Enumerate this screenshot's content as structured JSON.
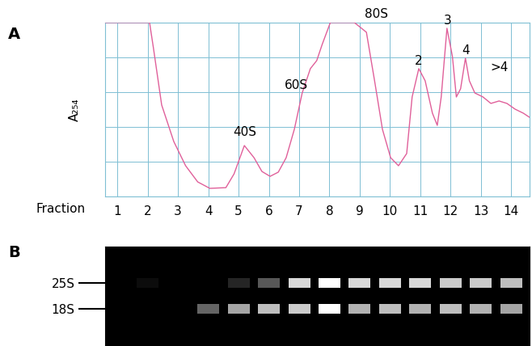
{
  "chart_data": [
    {
      "type": "line",
      "panel": "A",
      "x_label": "Fraction",
      "y_label": "A₂₅₄",
      "x": [
        0.6,
        2.06,
        2.19,
        2.46,
        2.86,
        3.25,
        3.65,
        4.05,
        4.58,
        4.85,
        5.19,
        5.51,
        5.77,
        6.04,
        6.31,
        6.57,
        6.84,
        7.1,
        7.37,
        7.58,
        7.76,
        8.03,
        8.82,
        9.22,
        9.49,
        9.75,
        10.02,
        10.28,
        10.55,
        10.73,
        10.95,
        11.16,
        11.4,
        11.56,
        11.69,
        11.88,
        12.06,
        12.19,
        12.33,
        12.49,
        12.62,
        12.8,
        13.07,
        13.33,
        13.6,
        13.86,
        14.13,
        14.4,
        14.6
      ],
      "values": [
        100,
        100,
        85.1,
        52.6,
        31.6,
        17.7,
        8.4,
        4.7,
        5.1,
        13.0,
        29.3,
        22.3,
        14.4,
        11.6,
        14.0,
        22.3,
        38.6,
        59.5,
        73.5,
        78.1,
        87.4,
        100,
        100,
        94.4,
        66.5,
        38.6,
        22.3,
        17.7,
        24.7,
        57.2,
        73.5,
        66.5,
        47.9,
        40.9,
        57.2,
        96.7,
        80.5,
        57.2,
        61.9,
        79.5,
        66.5,
        59.5,
        57.2,
        53.5,
        54.9,
        53.5,
        50.2,
        47.9,
        45.6
      ],
      "color": "#e0609a",
      "xlim": [
        0.6,
        14.6
      ],
      "ylim": [
        0,
        100
      ],
      "xticks": [
        1,
        2,
        3,
        4,
        5,
        6,
        7,
        8,
        9,
        10,
        11,
        12,
        13,
        14
      ],
      "yticks": [
        0,
        20,
        40,
        60,
        80,
        100
      ],
      "tick_labels": "x",
      "grid": true,
      "annotations": [
        {
          "text": "40S",
          "x": 5.2,
          "y": 37
        },
        {
          "text": "60S",
          "x": 6.9,
          "y": 64
        },
        {
          "text": "80S",
          "x": 9.55,
          "y": 105
        },
        {
          "text": "2",
          "x": 10.95,
          "y": 78
        },
        {
          "text": "3",
          "x": 11.9,
          "y": 101
        },
        {
          "text": "4",
          "x": 12.5,
          "y": 84
        },
        {
          "text": ">4",
          "x": 13.6,
          "y": 74
        }
      ]
    },
    {
      "type": "gel",
      "panel": "B",
      "categories": [
        null,
        null,
        null,
        null,
        null,
        null,
        null,
        null,
        null,
        null,
        null,
        null,
        null,
        null
      ],
      "series": [
        {
          "name": "25S",
          "values": [
            0,
            5,
            0,
            0,
            15,
            35,
            85,
            100,
            85,
            85,
            85,
            80,
            80,
            75
          ]
        },
        {
          "name": "18S",
          "values": [
            0,
            0,
            0,
            40,
            65,
            75,
            80,
            100,
            70,
            75,
            70,
            75,
            70,
            65
          ]
        }
      ],
      "intensity_range": [
        0,
        100
      ],
      "tick_labels": "y"
    }
  ]
}
